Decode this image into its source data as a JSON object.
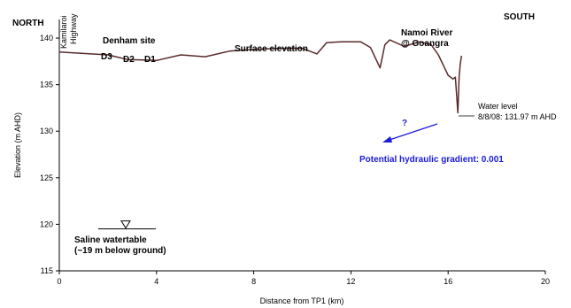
{
  "chart_data": {
    "type": "line",
    "title": "",
    "xlabel": "Distance from TP1 (km)",
    "ylabel": "Elevation (m AHD)",
    "xlim": [
      0,
      20
    ],
    "ylim": [
      115,
      142
    ],
    "xticks": [
      0,
      4,
      8,
      12,
      16,
      20
    ],
    "yticks": [
      115,
      120,
      125,
      130,
      135,
      140
    ],
    "grid": false,
    "legend": "none",
    "series": [
      {
        "name": "Surface elevation",
        "color": "#5a2a2a",
        "x": [
          0,
          2.0,
          2.8,
          4.0,
          5.0,
          6.0,
          7.0,
          8.0,
          9.0,
          10.0,
          10.6,
          11.0,
          11.6,
          12.4,
          12.8,
          13.2,
          13.4,
          13.6,
          14.2,
          14.8,
          15.3,
          15.6,
          16.0,
          16.2,
          16.3,
          16.4,
          16.45,
          16.5,
          16.55
        ],
        "y": [
          138.5,
          138.2,
          137.7,
          137.6,
          138.2,
          138.0,
          138.6,
          138.8,
          138.9,
          138.9,
          138.3,
          139.5,
          139.6,
          139.6,
          139.0,
          136.8,
          139.3,
          139.8,
          139.1,
          139.6,
          139.3,
          138.2,
          136.0,
          135.6,
          135.8,
          131.97,
          135.8,
          137.2,
          138.1
        ]
      }
    ],
    "annotations": {
      "north": "NORTH",
      "south": "SOUTH",
      "highway": [
        "Kamilaroi",
        "Highway"
      ],
      "site": "Denham site",
      "bores": [
        "D3",
        "D2",
        "D1"
      ],
      "surface": "Surface elevation",
      "river": [
        "Namoi River",
        "@ Goangra"
      ],
      "water_level": [
        "Water level",
        "8/8/08: 131.97 m AHD"
      ],
      "question": "?",
      "gradient": "Potential hydraulic gradient: 0.001",
      "watertable": [
        "Saline watertable",
        "(~19 m below ground)"
      ],
      "watertable_elevation": 119.5
    }
  }
}
